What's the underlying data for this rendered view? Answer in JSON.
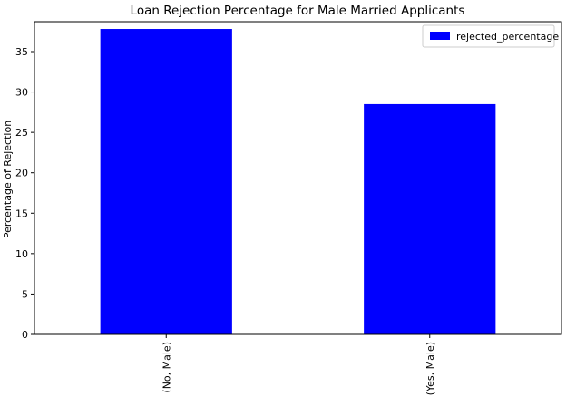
{
  "chart_data": {
    "type": "bar",
    "title": "Loan Rejection Percentage for Male Married Applicants",
    "xlabel": "",
    "ylabel": "Percentage of Rejection",
    "categories": [
      "(No, Male)",
      "(Yes, Male)"
    ],
    "series": [
      {
        "name": "rejected_percentage",
        "values": [
          37.8,
          28.5
        ],
        "color": "#0000ff"
      }
    ],
    "ylim": [
      0,
      38.7
    ],
    "yticks": [
      0,
      5,
      10,
      15,
      20,
      25,
      30,
      35
    ],
    "grid": false,
    "legend_position": "upper right"
  }
}
